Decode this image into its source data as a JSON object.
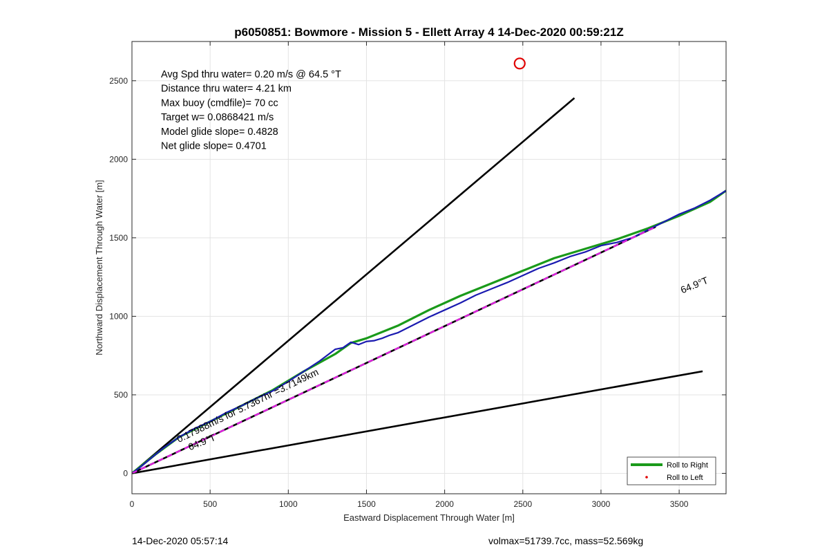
{
  "chart_data": {
    "type": "line",
    "title": "p6050851: Bowmore - Mission 5 - Ellett Array 4 14-Dec-2020 00:59:21Z",
    "xlabel": "Eastward Displacement Through Water [m]",
    "ylabel": "Northward Displacement Through Water [m]",
    "xlim": [
      0,
      3800
    ],
    "ylim": [
      -130,
      2750
    ],
    "xticks": [
      0,
      500,
      1000,
      1500,
      2000,
      2500,
      3000,
      3500
    ],
    "yticks": [
      0,
      500,
      1000,
      1500,
      2000,
      2500
    ],
    "grid": true,
    "legend_position": "bottom-right",
    "info_lines": [
      "Avg Spd thru water=  0.20 m/s @  64.5 °T",
      "Distance thru water=  4.21 km",
      "Max buoy (cmdfile)= 70 cc",
      "Target w= 0.0868421 m/s",
      "Model glide slope= 0.4828",
      "Net glide slope= 0.4701"
    ],
    "marker": {
      "x": 2480,
      "y": 2610,
      "color": "#e00000"
    },
    "reference_lines": [
      {
        "x": [
          0,
          2830
        ],
        "y": [
          0,
          2390
        ],
        "color": "#000000"
      },
      {
        "x": [
          0,
          3650
        ],
        "y": [
          0,
          650
        ],
        "color": "#000000"
      },
      {
        "x": [
          0,
          3350
        ],
        "y": [
          0,
          1570
        ],
        "color": "#000000"
      }
    ],
    "annotations": [
      {
        "text": "64.9°T",
        "x": 3520,
        "y": 1145,
        "angle": -22
      },
      {
        "text": "64.9°T",
        "x": 370,
        "y": 145,
        "angle": -22
      },
      {
        "text": "0.17988m/s for 5.7367hr =3.7149km",
        "x": 300,
        "y": 195,
        "angle": -26
      }
    ],
    "series": [
      {
        "name": "Roll to Right",
        "color": "#1a9a1a",
        "style": "line",
        "x": [
          0,
          150,
          300,
          500,
          700,
          900,
          1100,
          1300,
          1400,
          1500,
          1700,
          1900,
          2100,
          2300,
          2500,
          2700,
          2900,
          3100,
          3300,
          3500,
          3700,
          3800
        ],
        "y": [
          0,
          120,
          230,
          330,
          430,
          530,
          650,
          760,
          830,
          860,
          940,
          1040,
          1130,
          1210,
          1290,
          1370,
          1430,
          1490,
          1560,
          1640,
          1730,
          1800
        ]
      },
      {
        "name": "Roll to Left",
        "color": "#e00000",
        "style": "dots",
        "x": [],
        "y": []
      },
      {
        "color": "#1a1ab0",
        "style": "line",
        "x": [
          0,
          60,
          120,
          200,
          300,
          400,
          500,
          600,
          700,
          800,
          900,
          1000,
          1100,
          1200,
          1300,
          1350,
          1400,
          1450,
          1500,
          1550,
          1600,
          1650,
          1700,
          1800,
          1900,
          2000,
          2100,
          2200,
          2300,
          2400,
          2500,
          2600,
          2700,
          2800,
          2900,
          3000,
          3100,
          3200,
          3300,
          3400,
          3500,
          3600,
          3700,
          3800
        ],
        "y": [
          0,
          45,
          95,
          160,
          230,
          285,
          330,
          385,
          430,
          480,
          525,
          585,
          650,
          715,
          790,
          800,
          835,
          820,
          840,
          845,
          860,
          880,
          895,
          945,
          995,
          1040,
          1085,
          1135,
          1175,
          1215,
          1260,
          1305,
          1340,
          1380,
          1410,
          1450,
          1470,
          1500,
          1550,
          1600,
          1650,
          1690,
          1740,
          1800
        ]
      },
      {
        "color": "#e020e0",
        "style": "dashed",
        "x": [
          0,
          3350
        ],
        "y": [
          0,
          1570
        ]
      }
    ]
  },
  "footer": {
    "timestamp": "14-Dec-2020 05:57:14",
    "summary": "volmax=51739.7cc, mass=52.569kg"
  }
}
